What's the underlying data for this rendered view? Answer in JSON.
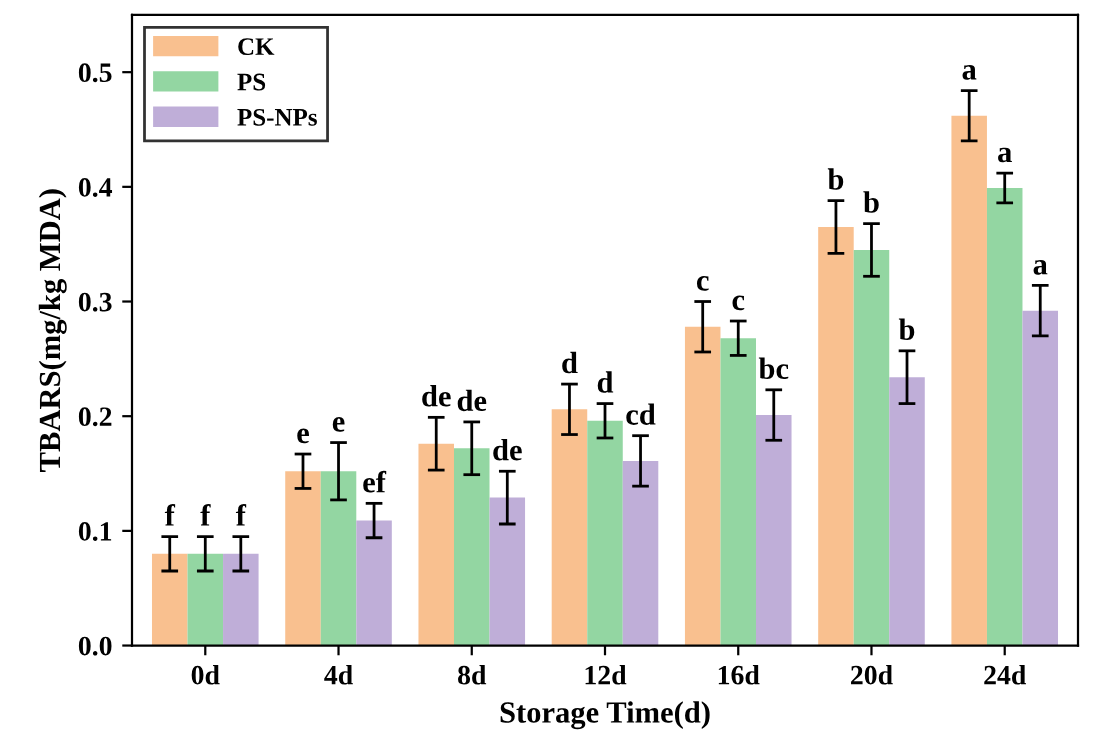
{
  "chart_data": {
    "type": "bar",
    "xlabel": "Storage Time(d)",
    "ylabel": "TBARS(mg/kg MDA)",
    "categories": [
      "0d",
      "4d",
      "8d",
      "12d",
      "16d",
      "20d",
      "24d"
    ],
    "series": [
      {
        "name": "CK",
        "color": "#f9c08f",
        "values": [
          0.08,
          0.152,
          0.176,
          0.206,
          0.278,
          0.365,
          0.462
        ],
        "errors": [
          0.015,
          0.015,
          0.023,
          0.022,
          0.022,
          0.023,
          0.022
        ]
      },
      {
        "name": "PS",
        "color": "#93d6a2",
        "values": [
          0.08,
          0.152,
          0.172,
          0.196,
          0.268,
          0.345,
          0.399
        ],
        "errors": [
          0.015,
          0.025,
          0.023,
          0.015,
          0.015,
          0.023,
          0.013
        ]
      },
      {
        "name": "PS-NPs",
        "color": "#bfaed8",
        "values": [
          0.08,
          0.109,
          0.129,
          0.161,
          0.201,
          0.234,
          0.292
        ],
        "errors": [
          0.015,
          0.015,
          0.023,
          0.022,
          0.022,
          0.023,
          0.022
        ]
      }
    ],
    "ylim": [
      0,
      0.55
    ],
    "yticks": [
      {
        "value": 0,
        "label": "0.0"
      },
      0.1,
      0.2,
      0.3,
      0.4,
      0.5
    ],
    "legend": "top left",
    "grid": false,
    "annotations": [
      "f",
      "f",
      "f",
      "e",
      "e",
      "ef",
      "de",
      "de",
      "de",
      "d",
      "d",
      "cd",
      "c",
      "c",
      "bc",
      "b",
      "b",
      "b",
      "a",
      "a",
      "a"
    ]
  }
}
